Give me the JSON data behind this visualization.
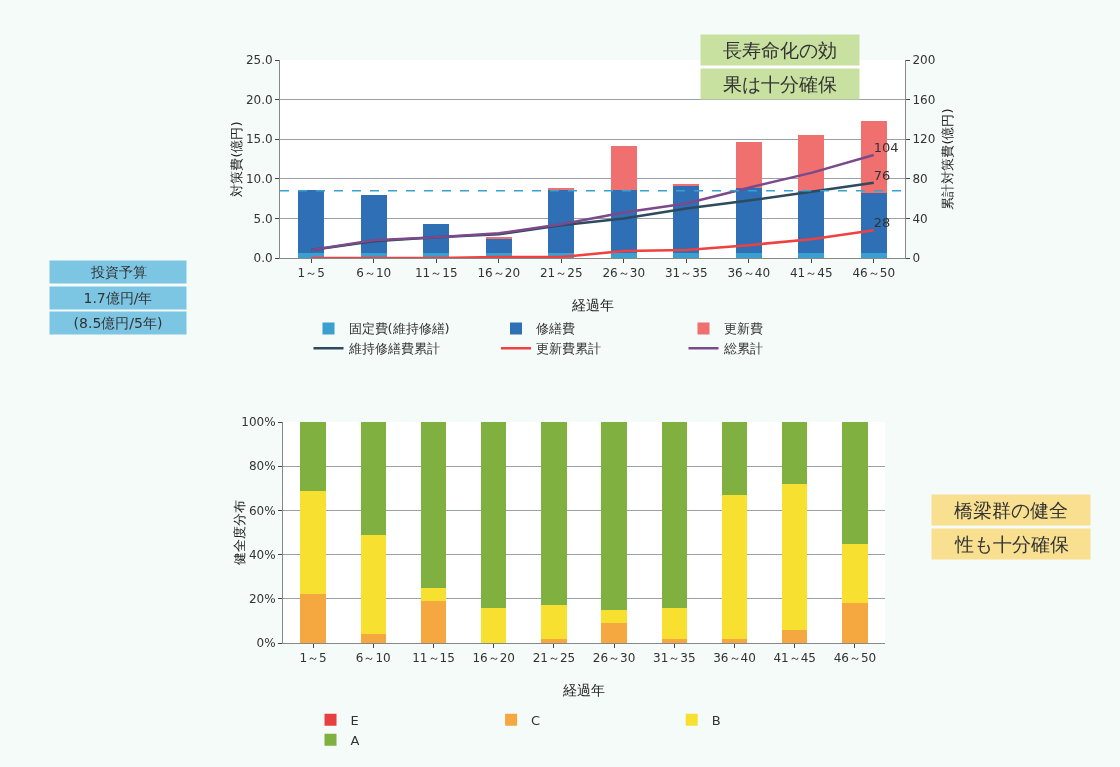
{
  "chart_data": [
    {
      "type": "bar",
      "stacked": true,
      "categories": [
        "1～5",
        "6～10",
        "11～15",
        "16～20",
        "21～25",
        "26～30",
        "31～35",
        "36～40",
        "41～45",
        "46～50"
      ],
      "xlabel": "経過年",
      "ylabel": "対策費(億円)",
      "y2label": "累計対策費(億円)",
      "ylim": [
        0,
        25
      ],
      "yticks": [
        {
          "value": 0,
          "label": "0.0"
        },
        {
          "value": 5,
          "label": "5.0"
        },
        {
          "value": 10,
          "label": "10.0"
        },
        {
          "value": 15,
          "label": "15.0"
        },
        {
          "value": 20,
          "label": "20.0"
        },
        {
          "value": 25,
          "label": "25.0"
        }
      ],
      "y2lim": [
        0,
        200
      ],
      "y2ticks": [
        0,
        40,
        80,
        120,
        160,
        200
      ],
      "grid": "y",
      "legend": "bottom",
      "series": [
        {
          "name": "固定費(維持修繕)",
          "color": "#3aa0d0",
          "values": [
            0.6,
            0.6,
            0.6,
            0.6,
            0.6,
            0.6,
            0.6,
            0.6,
            0.6,
            0.6
          ]
        },
        {
          "name": "修繕費",
          "color": "#2e6fb5",
          "values": [
            8.0,
            7.3,
            3.7,
            1.8,
            8.0,
            8.0,
            8.6,
            8.3,
            7.8,
            7.6
          ]
        },
        {
          "name": "更新費",
          "color": "#f07070",
          "values": [
            0,
            0,
            0,
            0.2,
            0.3,
            5.6,
            0.1,
            5.8,
            7.1,
            9.1
          ]
        },
        {
          "name": "維持修繕費累計",
          "type": "line",
          "axis": "y2",
          "color": "#2d4a5e",
          "values": [
            8,
            17,
            21,
            24,
            33,
            40,
            50,
            58,
            67,
            76
          ],
          "value_labels": [
            null,
            null,
            null,
            null,
            null,
            null,
            null,
            null,
            null,
            "76"
          ]
        },
        {
          "name": "更新費累計",
          "type": "line",
          "axis": "y2",
          "color": "#f04040",
          "values": [
            0,
            0,
            0,
            1,
            1,
            7,
            8,
            13,
            19,
            28
          ],
          "value_labels": [
            null,
            null,
            null,
            null,
            null,
            null,
            null,
            null,
            null,
            "28"
          ]
        },
        {
          "name": "総累計",
          "type": "line",
          "axis": "y2",
          "color": "#7a4a8a",
          "values": [
            8,
            18,
            21,
            25,
            34,
            46,
            55,
            71,
            86,
            104
          ],
          "value_labels": [
            null,
            null,
            null,
            null,
            null,
            null,
            null,
            null,
            null,
            "104"
          ]
        }
      ],
      "ref_lines": [
        {
          "axis": "y",
          "value": 8.5,
          "color": "#3aa0d0",
          "line_style": "dashed"
        }
      ],
      "annotations": [
        "長寿命化の効",
        "果は十分確保",
        "投資予算",
        "1.7億円/年",
        "(8.5億円/5年)"
      ]
    },
    {
      "type": "bar",
      "stacked": true,
      "categories": [
        "1～5",
        "6～10",
        "11～15",
        "16～20",
        "21～25",
        "26～30",
        "31～35",
        "36～40",
        "41～45",
        "46～50"
      ],
      "xlabel": "経過年",
      "ylabel": "健全度分布",
      "ylim": [
        0,
        100
      ],
      "yticks": [
        {
          "value": 0,
          "label": "0%"
        },
        {
          "value": 20,
          "label": "20%"
        },
        {
          "value": 40,
          "label": "40%"
        },
        {
          "value": 60,
          "label": "60%"
        },
        {
          "value": 80,
          "label": "80%"
        },
        {
          "value": 100,
          "label": "100%"
        }
      ],
      "grid": "y",
      "legend": "bottom",
      "series": [
        {
          "name": "E",
          "color": "#e84040",
          "values": [
            0,
            0,
            0,
            0,
            0,
            0,
            0,
            0,
            0,
            0
          ]
        },
        {
          "name": "C",
          "color": "#f5a840",
          "values": [
            22,
            4,
            19,
            0,
            2,
            9,
            2,
            2,
            6,
            18
          ]
        },
        {
          "name": "B",
          "color": "#f8e030",
          "values": [
            47,
            45,
            6,
            16,
            15,
            6,
            14,
            65,
            66,
            27
          ]
        },
        {
          "name": "A",
          "color": "#80b040",
          "values": [
            31,
            51,
            75,
            84,
            83,
            85,
            84,
            33,
            28,
            55
          ]
        }
      ],
      "annotations": [
        "橋梁群の健全",
        "性も十分確保"
      ]
    }
  ]
}
